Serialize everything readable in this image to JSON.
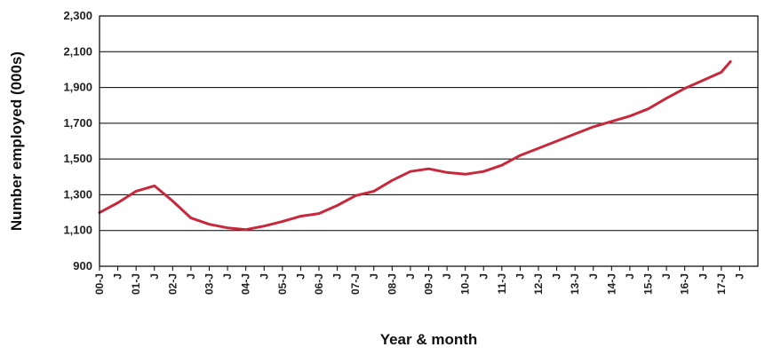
{
  "chart_data": {
    "type": "line",
    "xlabel": "Year & month",
    "ylabel": "Number employed (000s)",
    "ylim": [
      900,
      2300
    ],
    "yticks": [
      "900",
      "1,100",
      "1,300",
      "1,500",
      "1,700",
      "1,900",
      "2,100",
      "2,300"
    ],
    "xticks": [
      "00-J",
      "J",
      "01-J",
      "J",
      "02-J",
      "J",
      "03-J",
      "J",
      "04-J",
      "J",
      "05-J",
      "J",
      "06-J",
      "J",
      "07-J",
      "J",
      "08-J",
      "J",
      "09-J",
      "J",
      "10-J",
      "J",
      "11-J",
      "J",
      "12-J",
      "J",
      "13-J",
      "J",
      "14-J",
      "J",
      "15-J",
      "J",
      "16-J",
      "J",
      "17-J",
      "J"
    ],
    "grid": true,
    "legend": "none",
    "series": [
      {
        "color": "#c8283c",
        "x": [
          "2000-01",
          "2000-07",
          "2001-01",
          "2001-07",
          "2002-01",
          "2002-07",
          "2003-01",
          "2003-07",
          "2004-01",
          "2004-07",
          "2005-01",
          "2005-07",
          "2006-01",
          "2006-07",
          "2007-01",
          "2007-07",
          "2008-01",
          "2008-07",
          "2009-01",
          "2009-07",
          "2010-01",
          "2010-07",
          "2011-01",
          "2011-07",
          "2012-01",
          "2012-07",
          "2013-01",
          "2013-07",
          "2014-01",
          "2014-07",
          "2015-01",
          "2015-07",
          "2016-01",
          "2016-07",
          "2017-01",
          "2017-04"
        ],
        "values": [
          1200,
          1255,
          1320,
          1350,
          1265,
          1170,
          1135,
          1115,
          1105,
          1125,
          1150,
          1180,
          1195,
          1240,
          1295,
          1320,
          1380,
          1430,
          1445,
          1425,
          1415,
          1430,
          1465,
          1520,
          1560,
          1600,
          1640,
          1680,
          1710,
          1740,
          1780,
          1840,
          1895,
          1940,
          1985,
          2045
        ]
      }
    ]
  }
}
